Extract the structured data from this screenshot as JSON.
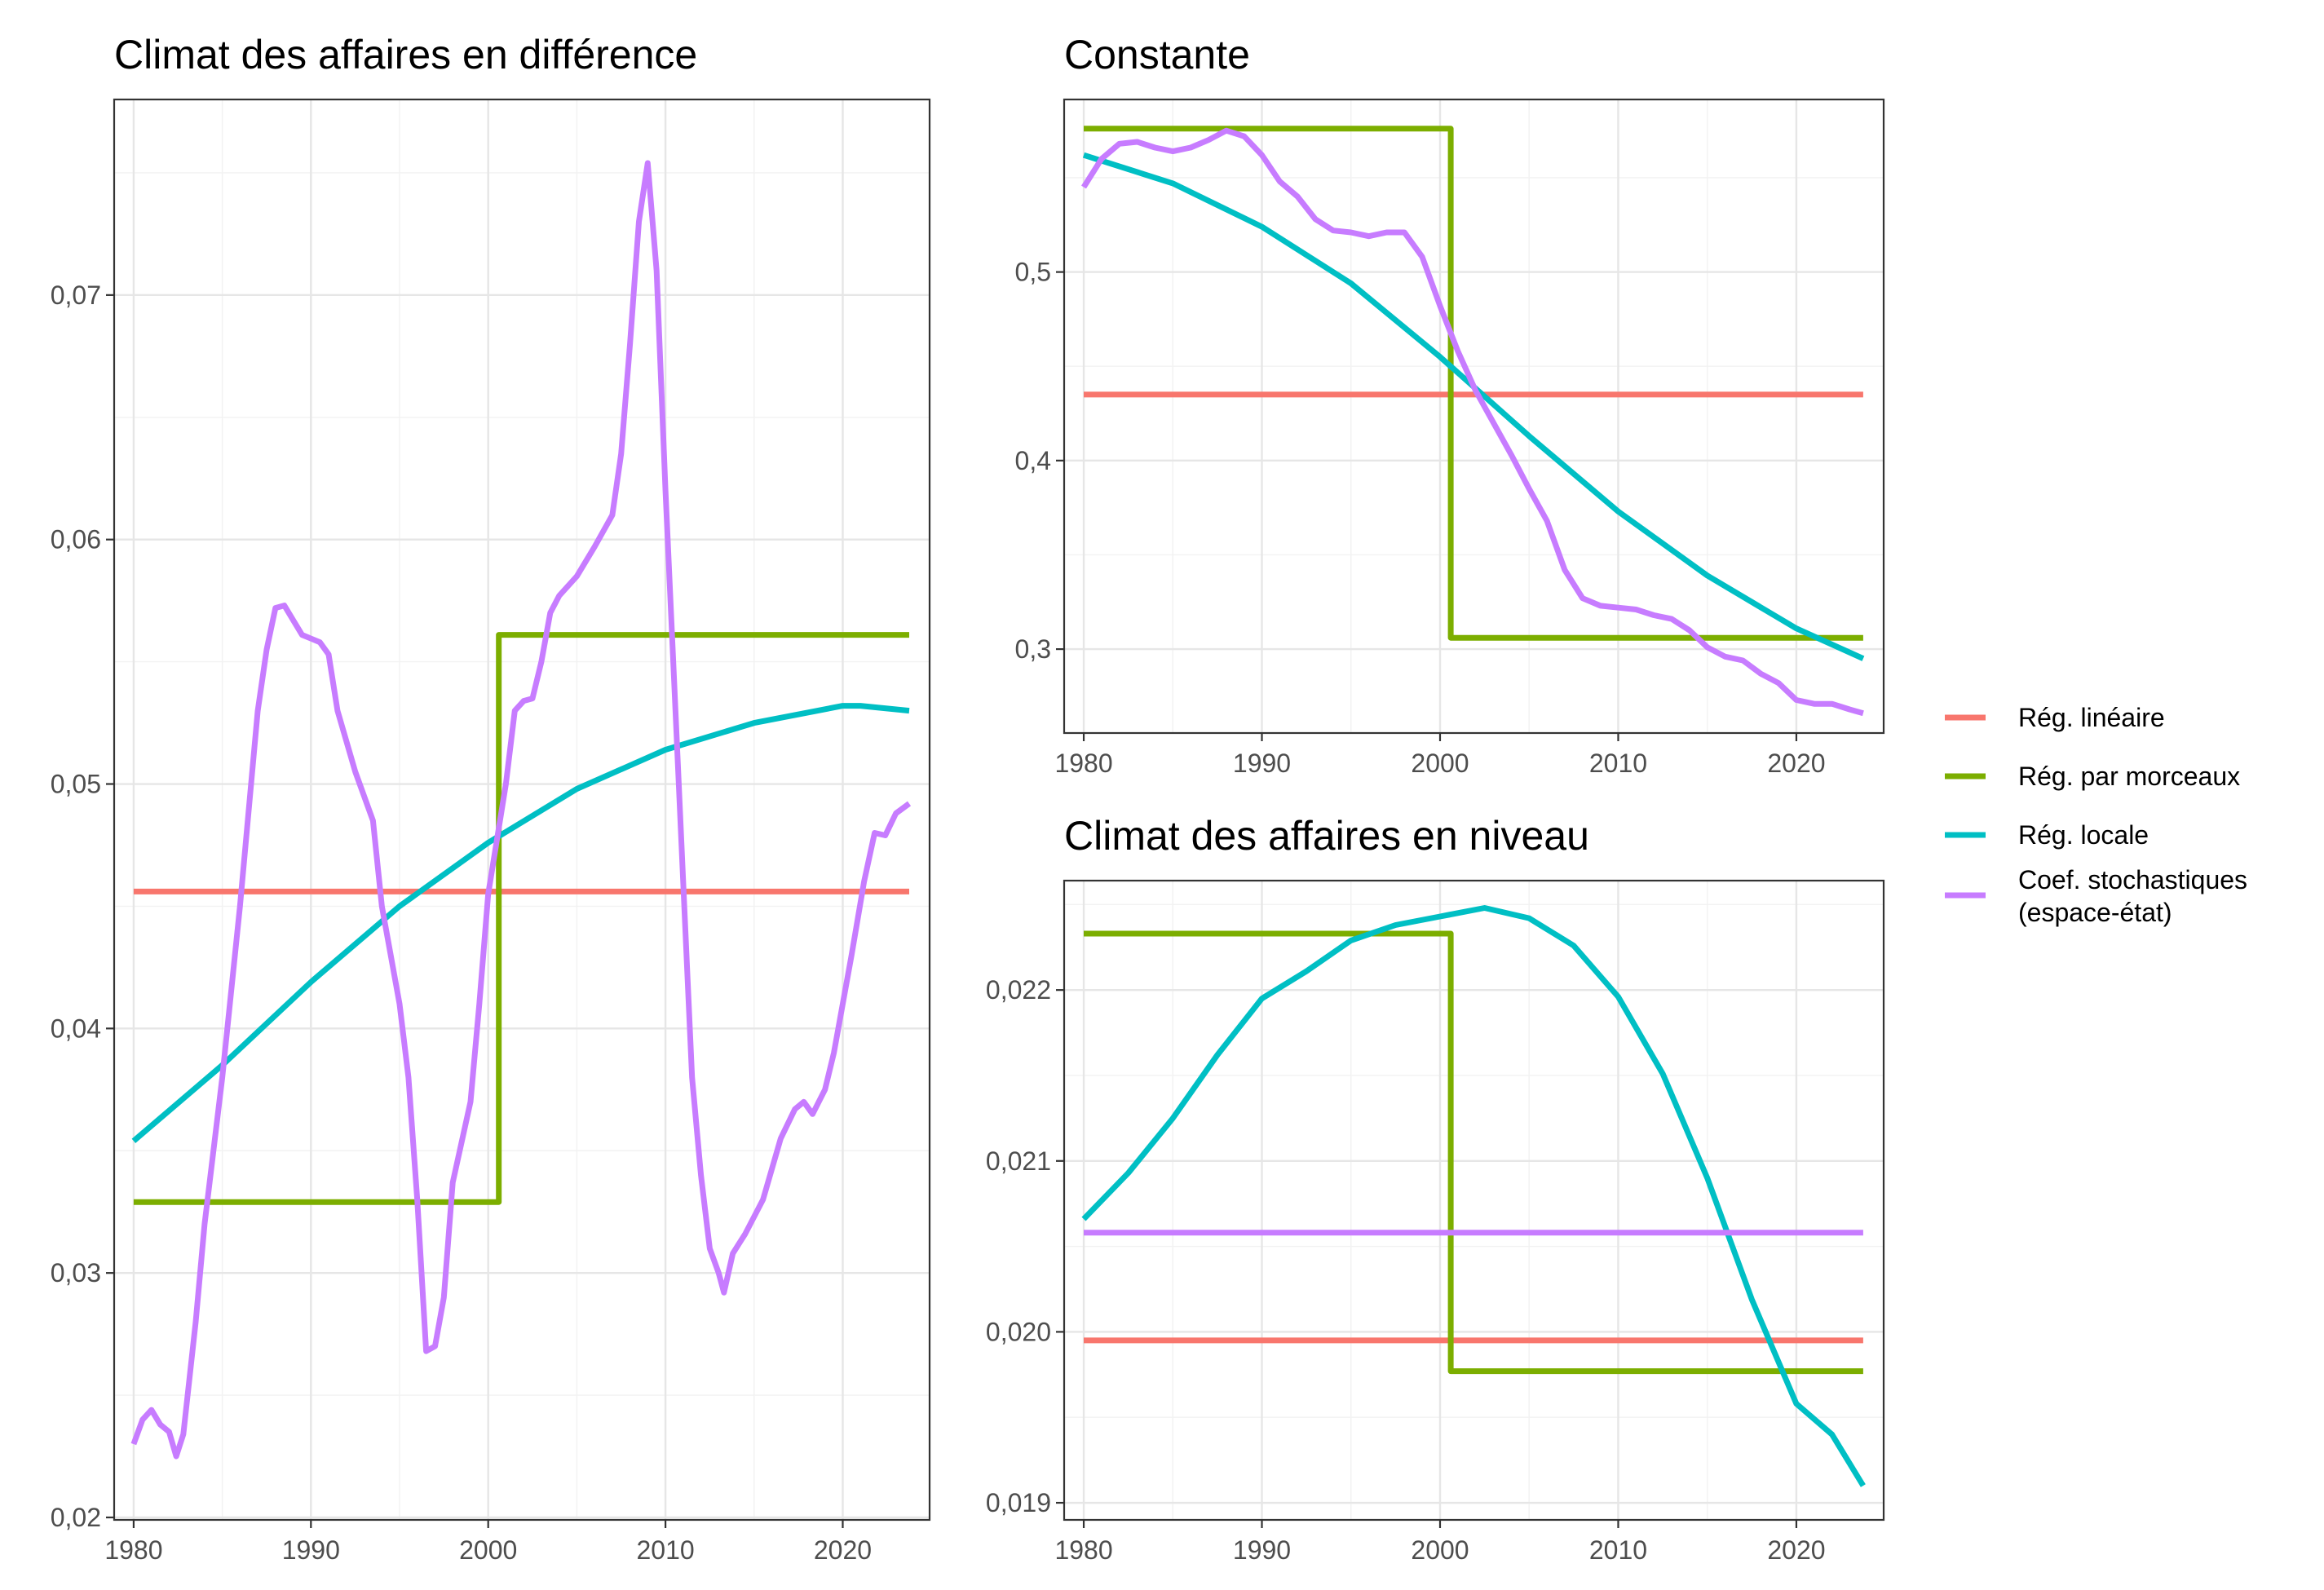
{
  "chart_data": [
    {
      "id": "diff",
      "type": "line",
      "title": "Climat des affaires en différence",
      "xlim": [
        1978.9,
        2024.9
      ],
      "ylim": [
        0.0199,
        0.078
      ],
      "x_ticks": [
        1980,
        1990,
        2000,
        2010,
        2020
      ],
      "x_tick_labels": [
        "1980",
        "1990",
        "2000",
        "2010",
        "2020"
      ],
      "y_ticks": [
        0.02,
        0.03,
        0.04,
        0.05,
        0.06,
        0.07
      ],
      "y_tick_labels": [
        "0,02",
        "0,03",
        "0,04",
        "0,05",
        "0,06",
        "0,07"
      ],
      "grid": true,
      "series": [
        {
          "name": "Rég. linéaire",
          "color": "#F8766D",
          "points": [
            [
              1980,
              0.0456
            ],
            [
              2023.75,
              0.0456
            ]
          ]
        },
        {
          "name": "Rég. par morceaux",
          "color": "#7CAE00",
          "points": [
            [
              1980,
              0.0329
            ],
            [
              2000.6,
              0.0329
            ],
            [
              2000.6,
              0.0561
            ],
            [
              2023.75,
              0.0561
            ]
          ]
        },
        {
          "name": "Rég. locale",
          "color": "#00BFC4",
          "points": [
            [
              1980,
              0.0354
            ],
            [
              1985,
              0.0385
            ],
            [
              1990,
              0.0419
            ],
            [
              1995,
              0.045
            ],
            [
              2000,
              0.0476
            ],
            [
              2005,
              0.0498
            ],
            [
              2010,
              0.0514
            ],
            [
              2015,
              0.0525
            ],
            [
              2020,
              0.0532
            ],
            [
              2021,
              0.0532
            ],
            [
              2023.75,
              0.053
            ]
          ]
        },
        {
          "name": "Coef. stochastiques\n(espace-état)",
          "color": "#C77CFF",
          "points": [
            [
              1980,
              0.023
            ],
            [
              1980.5,
              0.024
            ],
            [
              1981,
              0.0244
            ],
            [
              1981.5,
              0.0238
            ],
            [
              1982,
              0.0235
            ],
            [
              1982.4,
              0.0225
            ],
            [
              1982.8,
              0.0234
            ],
            [
              1983.5,
              0.028
            ],
            [
              1984,
              0.032
            ],
            [
              1985,
              0.038
            ],
            [
              1986,
              0.045
            ],
            [
              1987,
              0.053
            ],
            [
              1987.5,
              0.0555
            ],
            [
              1988,
              0.0572
            ],
            [
              1988.5,
              0.0573
            ],
            [
              1989.5,
              0.0561
            ],
            [
              1990.5,
              0.0558
            ],
            [
              1991,
              0.0553
            ],
            [
              1991.5,
              0.053
            ],
            [
              1992.5,
              0.0505
            ],
            [
              1993.5,
              0.0485
            ],
            [
              1994,
              0.045
            ],
            [
              1995,
              0.041
            ],
            [
              1995.5,
              0.038
            ],
            [
              1996,
              0.033
            ],
            [
              1996.5,
              0.0268
            ],
            [
              1997,
              0.027
            ],
            [
              1997.5,
              0.029
            ],
            [
              1998,
              0.0337
            ],
            [
              1999,
              0.037
            ],
            [
              1999.5,
              0.041
            ],
            [
              2000,
              0.0455
            ],
            [
              2001,
              0.05
            ],
            [
              2001.5,
              0.053
            ],
            [
              2002,
              0.0534
            ],
            [
              2002.5,
              0.0535
            ],
            [
              2003,
              0.055
            ],
            [
              2003.5,
              0.057
            ],
            [
              2004,
              0.0577
            ],
            [
              2005,
              0.0585
            ],
            [
              2006,
              0.0597
            ],
            [
              2007,
              0.061
            ],
            [
              2007.5,
              0.0635
            ],
            [
              2008,
              0.068
            ],
            [
              2008.5,
              0.073
            ],
            [
              2009,
              0.0754
            ],
            [
              2009.5,
              0.071
            ],
            [
              2010,
              0.062
            ],
            [
              2010.5,
              0.054
            ],
            [
              2011,
              0.046
            ],
            [
              2011.5,
              0.038
            ],
            [
              2012,
              0.034
            ],
            [
              2012.5,
              0.031
            ],
            [
              2013,
              0.03
            ],
            [
              2013.3,
              0.0292
            ],
            [
              2013.8,
              0.0308
            ],
            [
              2014.5,
              0.0316
            ],
            [
              2015.5,
              0.033
            ],
            [
              2016.5,
              0.0355
            ],
            [
              2017.3,
              0.0367
            ],
            [
              2017.8,
              0.037
            ],
            [
              2018.3,
              0.0365
            ],
            [
              2019,
              0.0375
            ],
            [
              2019.5,
              0.039
            ],
            [
              2020.5,
              0.043
            ],
            [
              2021.2,
              0.046
            ],
            [
              2021.8,
              0.048
            ],
            [
              2022.4,
              0.0479
            ],
            [
              2023,
              0.0488
            ],
            [
              2023.75,
              0.0492
            ]
          ]
        }
      ]
    },
    {
      "id": "constante",
      "type": "line",
      "title": "Constante",
      "xlim": [
        1978.9,
        2024.9
      ],
      "ylim": [
        0.2555,
        0.5915
      ],
      "x_ticks": [
        1980,
        1990,
        2000,
        2010,
        2020
      ],
      "x_tick_labels": [
        "1980",
        "1990",
        "2000",
        "2010",
        "2020"
      ],
      "y_ticks": [
        0.3,
        0.4,
        0.5
      ],
      "y_tick_labels": [
        "0,3",
        "0,4",
        "0,5"
      ],
      "grid": true,
      "series": [
        {
          "name": "Rég. linéaire",
          "color": "#F8766D",
          "points": [
            [
              1980,
              0.435
            ],
            [
              2023.75,
              0.435
            ]
          ]
        },
        {
          "name": "Rég. par morceaux",
          "color": "#7CAE00",
          "points": [
            [
              1980,
              0.576
            ],
            [
              2000.6,
              0.576
            ],
            [
              2000.6,
              0.306
            ],
            [
              2023.75,
              0.306
            ]
          ]
        },
        {
          "name": "Rég. locale",
          "color": "#00BFC4",
          "points": [
            [
              1980,
              0.562
            ],
            [
              1985,
              0.547
            ],
            [
              1990,
              0.524
            ],
            [
              1995,
              0.494
            ],
            [
              2000,
              0.455
            ],
            [
              2005,
              0.413
            ],
            [
              2010,
              0.373
            ],
            [
              2015,
              0.339
            ],
            [
              2020,
              0.311
            ],
            [
              2023.75,
              0.295
            ]
          ]
        },
        {
          "name": "Coef. stochastiques\n(espace-état)",
          "color": "#C77CFF",
          "points": [
            [
              1980,
              0.545
            ],
            [
              1981,
              0.56
            ],
            [
              1982,
              0.568
            ],
            [
              1983,
              0.569
            ],
            [
              1984,
              0.566
            ],
            [
              1985,
              0.564
            ],
            [
              1986,
              0.566
            ],
            [
              1987,
              0.57
            ],
            [
              1988,
              0.575
            ],
            [
              1989,
              0.572
            ],
            [
              1990,
              0.562
            ],
            [
              1991,
              0.548
            ],
            [
              1992,
              0.54
            ],
            [
              1993,
              0.528
            ],
            [
              1994,
              0.522
            ],
            [
              1995,
              0.521
            ],
            [
              1996,
              0.519
            ],
            [
              1997,
              0.521
            ],
            [
              1998,
              0.521
            ],
            [
              1999,
              0.508
            ],
            [
              2000,
              0.482
            ],
            [
              2001,
              0.458
            ],
            [
              2002,
              0.437
            ],
            [
              2003,
              0.42
            ],
            [
              2004,
              0.403
            ],
            [
              2005,
              0.385
            ],
            [
              2006,
              0.368
            ],
            [
              2007,
              0.342
            ],
            [
              2008,
              0.327
            ],
            [
              2009,
              0.323
            ],
            [
              2010,
              0.322
            ],
            [
              2011,
              0.321
            ],
            [
              2012,
              0.318
            ],
            [
              2013,
              0.316
            ],
            [
              2014,
              0.31
            ],
            [
              2015,
              0.301
            ],
            [
              2016,
              0.296
            ],
            [
              2017,
              0.294
            ],
            [
              2018,
              0.287
            ],
            [
              2019,
              0.282
            ],
            [
              2020,
              0.273
            ],
            [
              2021,
              0.271
            ],
            [
              2022,
              0.271
            ],
            [
              2023,
              0.268
            ],
            [
              2023.75,
              0.266
            ]
          ]
        }
      ]
    },
    {
      "id": "niveau",
      "type": "line",
      "title": "Climat des affaires en niveau",
      "xlim": [
        1978.9,
        2024.9
      ],
      "ylim": [
        0.0189,
        0.02264
      ],
      "x_ticks": [
        1980,
        1990,
        2000,
        2010,
        2020
      ],
      "x_tick_labels": [
        "1980",
        "1990",
        "2000",
        "2010",
        "2020"
      ],
      "y_ticks": [
        0.019,
        0.02,
        0.021,
        0.022
      ],
      "y_tick_labels": [
        "0,019",
        "0,020",
        "0,021",
        "0,022"
      ],
      "grid": true,
      "series": [
        {
          "name": "Rég. linéaire",
          "color": "#F8766D",
          "points": [
            [
              1980,
              0.01995
            ],
            [
              2023.75,
              0.01995
            ]
          ]
        },
        {
          "name": "Rég. par morceaux",
          "color": "#7CAE00",
          "points": [
            [
              1980,
              0.02233
            ],
            [
              2000.6,
              0.02233
            ],
            [
              2000.6,
              0.01977
            ],
            [
              2023.75,
              0.01977
            ]
          ]
        },
        {
          "name": "Rég. locale",
          "color": "#00BFC4",
          "points": [
            [
              1980,
              0.02066
            ],
            [
              1982.5,
              0.02093
            ],
            [
              1985,
              0.02125
            ],
            [
              1987.5,
              0.02162
            ],
            [
              1990,
              0.02195
            ],
            [
              1992.5,
              0.02211
            ],
            [
              1995,
              0.02229
            ],
            [
              1997.5,
              0.02238
            ],
            [
              2000,
              0.02243
            ],
            [
              2002.5,
              0.02248
            ],
            [
              2005,
              0.02242
            ],
            [
              2007.5,
              0.02226
            ],
            [
              2010,
              0.02196
            ],
            [
              2012.5,
              0.02151
            ],
            [
              2015,
              0.0209
            ],
            [
              2017.5,
              0.02019
            ],
            [
              2020,
              0.01958
            ],
            [
              2022,
              0.0194
            ],
            [
              2023.75,
              0.0191
            ]
          ]
        },
        {
          "name": "Coef. stochastiques\n(espace-état)",
          "color": "#C77CFF",
          "points": [
            [
              1980,
              0.02058
            ],
            [
              2023.75,
              0.02058
            ]
          ]
        }
      ]
    }
  ],
  "legend": {
    "position": "right",
    "items": [
      {
        "label": "Rég. linéaire",
        "color": "#F8766D"
      },
      {
        "label": "Rég. par morceaux",
        "color": "#7CAE00"
      },
      {
        "label": "Rég. locale",
        "color": "#00BFC4"
      },
      {
        "label_lines": [
          "Coef. stochastiques",
          "(espace-état)"
        ],
        "color": "#C77CFF"
      }
    ]
  }
}
